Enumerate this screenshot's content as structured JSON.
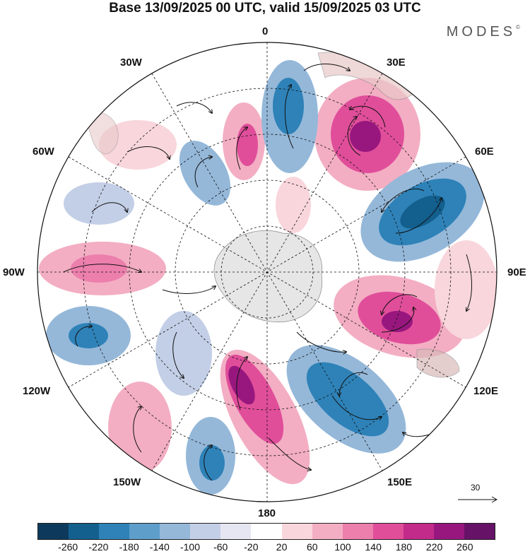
{
  "title": "Base 13/09/2025 00 UTC, valid 15/09/2025 03 UTC",
  "brand": "MODES",
  "brand_mark": "©",
  "lon_labels": {
    "top": "0",
    "tr": "30E",
    "tr2": "60E",
    "right": "90E",
    "br2": "120E",
    "br": "150E",
    "bottom": "180",
    "bl": "150W",
    "bl2": "120W",
    "left": "90W",
    "tl2": "60W",
    "tl": "30W"
  },
  "reference_vector": "30",
  "colorbar": {
    "colors": [
      "#0d3a5c",
      "#135f8e",
      "#2e82b8",
      "#5d9ecb",
      "#95b8d9",
      "#c3cfe6",
      "#e6e6f2",
      "#ffffff",
      "#f8d6dc",
      "#f3aec3",
      "#ec7fac",
      "#e04e9a",
      "#c22b8a",
      "#98177e",
      "#661267"
    ],
    "ticks": [
      "-260",
      "-220",
      "-180",
      "-140",
      "-100",
      "-60",
      "-20",
      "20",
      "60",
      "100",
      "140",
      "180",
      "220",
      "260"
    ]
  }
}
